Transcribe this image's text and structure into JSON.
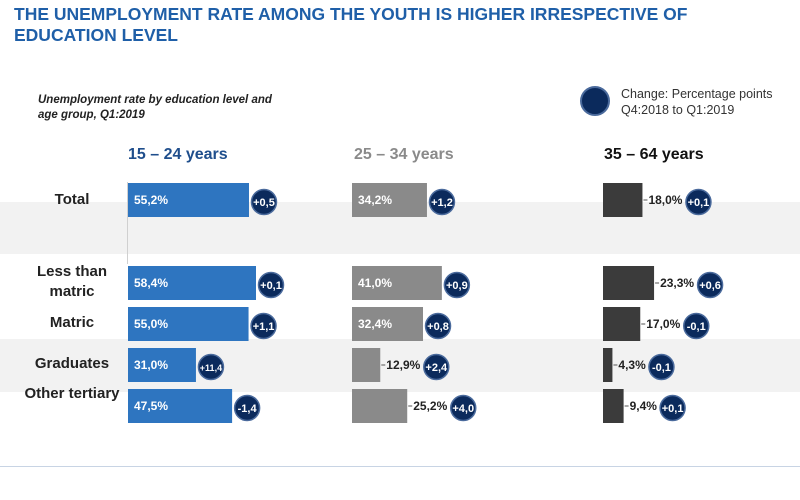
{
  "title": "THE UNEMPLOYMENT RATE AMONG THE YOUTH IS HIGHER IRRESPECTIVE OF EDUCATION LEVEL",
  "subtitle": "Unemployment rate by education level and age group, Q1:2019",
  "legend": {
    "label": "Change: Percentage points Q4:2018 to Q1:2019",
    "color": "#0b2a5c"
  },
  "chart_data": {
    "type": "bar",
    "title": "",
    "categories": [
      "Total",
      "Less than matric",
      "Matric",
      "Graduates",
      "Other tertiary"
    ],
    "series": [
      {
        "name": "15 – 24 years",
        "color": "#2e75c0",
        "head_color": "#1f4e8c",
        "values": [
          55.2,
          58.4,
          55.0,
          31.0,
          47.5
        ],
        "labels": [
          "55,2%",
          "58,4%",
          "55,0%",
          "31,0%",
          "47,5%"
        ],
        "changes": [
          "+0,5",
          "+0,1",
          "+1,1",
          "+11,4",
          "-1,4"
        ]
      },
      {
        "name": "25 – 34 years",
        "color": "#8a8a8a",
        "head_color": "#8a8a8a",
        "values": [
          34.2,
          41.0,
          32.4,
          12.9,
          25.2
        ],
        "labels": [
          "34,2%",
          "41,0%",
          "32,4%",
          "12,9%",
          "25,2%"
        ],
        "changes": [
          "+1,2",
          "+0,9",
          "+0,8",
          "+2,4",
          "+4,0"
        ]
      },
      {
        "name": "35 – 64 years",
        "color": "#3b3b3b",
        "head_color": "#111111",
        "values": [
          18.0,
          23.3,
          17.0,
          4.3,
          9.4
        ],
        "labels": [
          "18,0%",
          "23,3%",
          "17,0%",
          "4,3%",
          "9,4%"
        ],
        "changes": [
          "+0,1",
          "+0,6",
          "-0,1",
          "-0,1",
          "+0,1"
        ]
      }
    ]
  }
}
